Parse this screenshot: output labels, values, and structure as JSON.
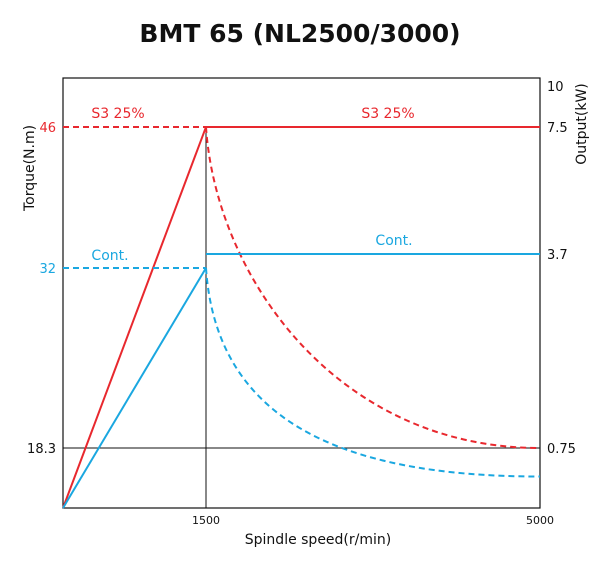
{
  "chart_data": {
    "type": "line",
    "title": "BMT 65 (NL2500/3000)",
    "xlabel": "Spindle speed(r/min)",
    "ylabel_left": "Torque(N.m)",
    "ylabel_right": "Output(kW)",
    "x_ticks": [
      "1500",
      "5000"
    ],
    "left_ticks": [
      {
        "value": 46,
        "label": "46",
        "color": "#e8282e"
      },
      {
        "value": 32,
        "label": "32",
        "color": "#1aa7e0"
      },
      {
        "value": 18.3,
        "label": "18.3",
        "color": "#111111"
      }
    ],
    "right_ticks": [
      {
        "label": "10"
      },
      {
        "label": "7.5"
      },
      {
        "label": "3.7"
      },
      {
        "label": "0.75"
      }
    ],
    "series": [
      {
        "name": "S3 25%",
        "color": "#e8282e",
        "kind": "torque",
        "segments": [
          {
            "style": "solid",
            "points": [
              [
                0,
                0
              ],
              [
                1500,
                46
              ]
            ]
          },
          {
            "style": "dashed",
            "points": [
              [
                0,
                46
              ],
              [
                1500,
                46
              ]
            ]
          },
          {
            "style": "dashed",
            "points": [
              [
                1500,
                46
              ],
              [
                2500,
                27.6
              ],
              [
                3500,
                19.7
              ],
              [
                5000,
                18.3
              ]
            ]
          }
        ]
      },
      {
        "name": "S3 25%",
        "color": "#e8282e",
        "kind": "output",
        "segments": [
          {
            "style": "solid",
            "points": [
              [
                1500,
                7.5
              ],
              [
                5000,
                7.5
              ]
            ]
          }
        ]
      },
      {
        "name": "Cont.",
        "color": "#1aa7e0",
        "kind": "torque",
        "segments": [
          {
            "style": "solid",
            "points": [
              [
                0,
                0
              ],
              [
                1500,
                32
              ]
            ]
          },
          {
            "style": "dashed",
            "points": [
              [
                0,
                32
              ],
              [
                1500,
                32
              ]
            ]
          },
          {
            "style": "dashed",
            "points": [
              [
                1500,
                32
              ],
              [
                2500,
                19.2
              ],
              [
                3500,
                13.7
              ],
              [
                5000,
                9.6
              ]
            ]
          }
        ]
      },
      {
        "name": "Cont.",
        "color": "#1aa7e0",
        "kind": "output",
        "segments": [
          {
            "style": "solid",
            "points": [
              [
                1500,
                3.7
              ],
              [
                5000,
                3.7
              ]
            ]
          }
        ]
      }
    ],
    "series_labels": [
      {
        "text": "S3 25%",
        "color": "#e8282e",
        "side": "left"
      },
      {
        "text": "S3 25%",
        "color": "#e8282e",
        "side": "right"
      },
      {
        "text": "Cont.",
        "color": "#1aa7e0",
        "side": "left"
      },
      {
        "text": "Cont.",
        "color": "#1aa7e0",
        "side": "right"
      }
    ],
    "grid": false,
    "reference_lines": [
      {
        "axis": "y",
        "value": 18.3,
        "color": "#111111"
      },
      {
        "axis": "x",
        "value": 1500,
        "color": "#111111"
      }
    ]
  }
}
